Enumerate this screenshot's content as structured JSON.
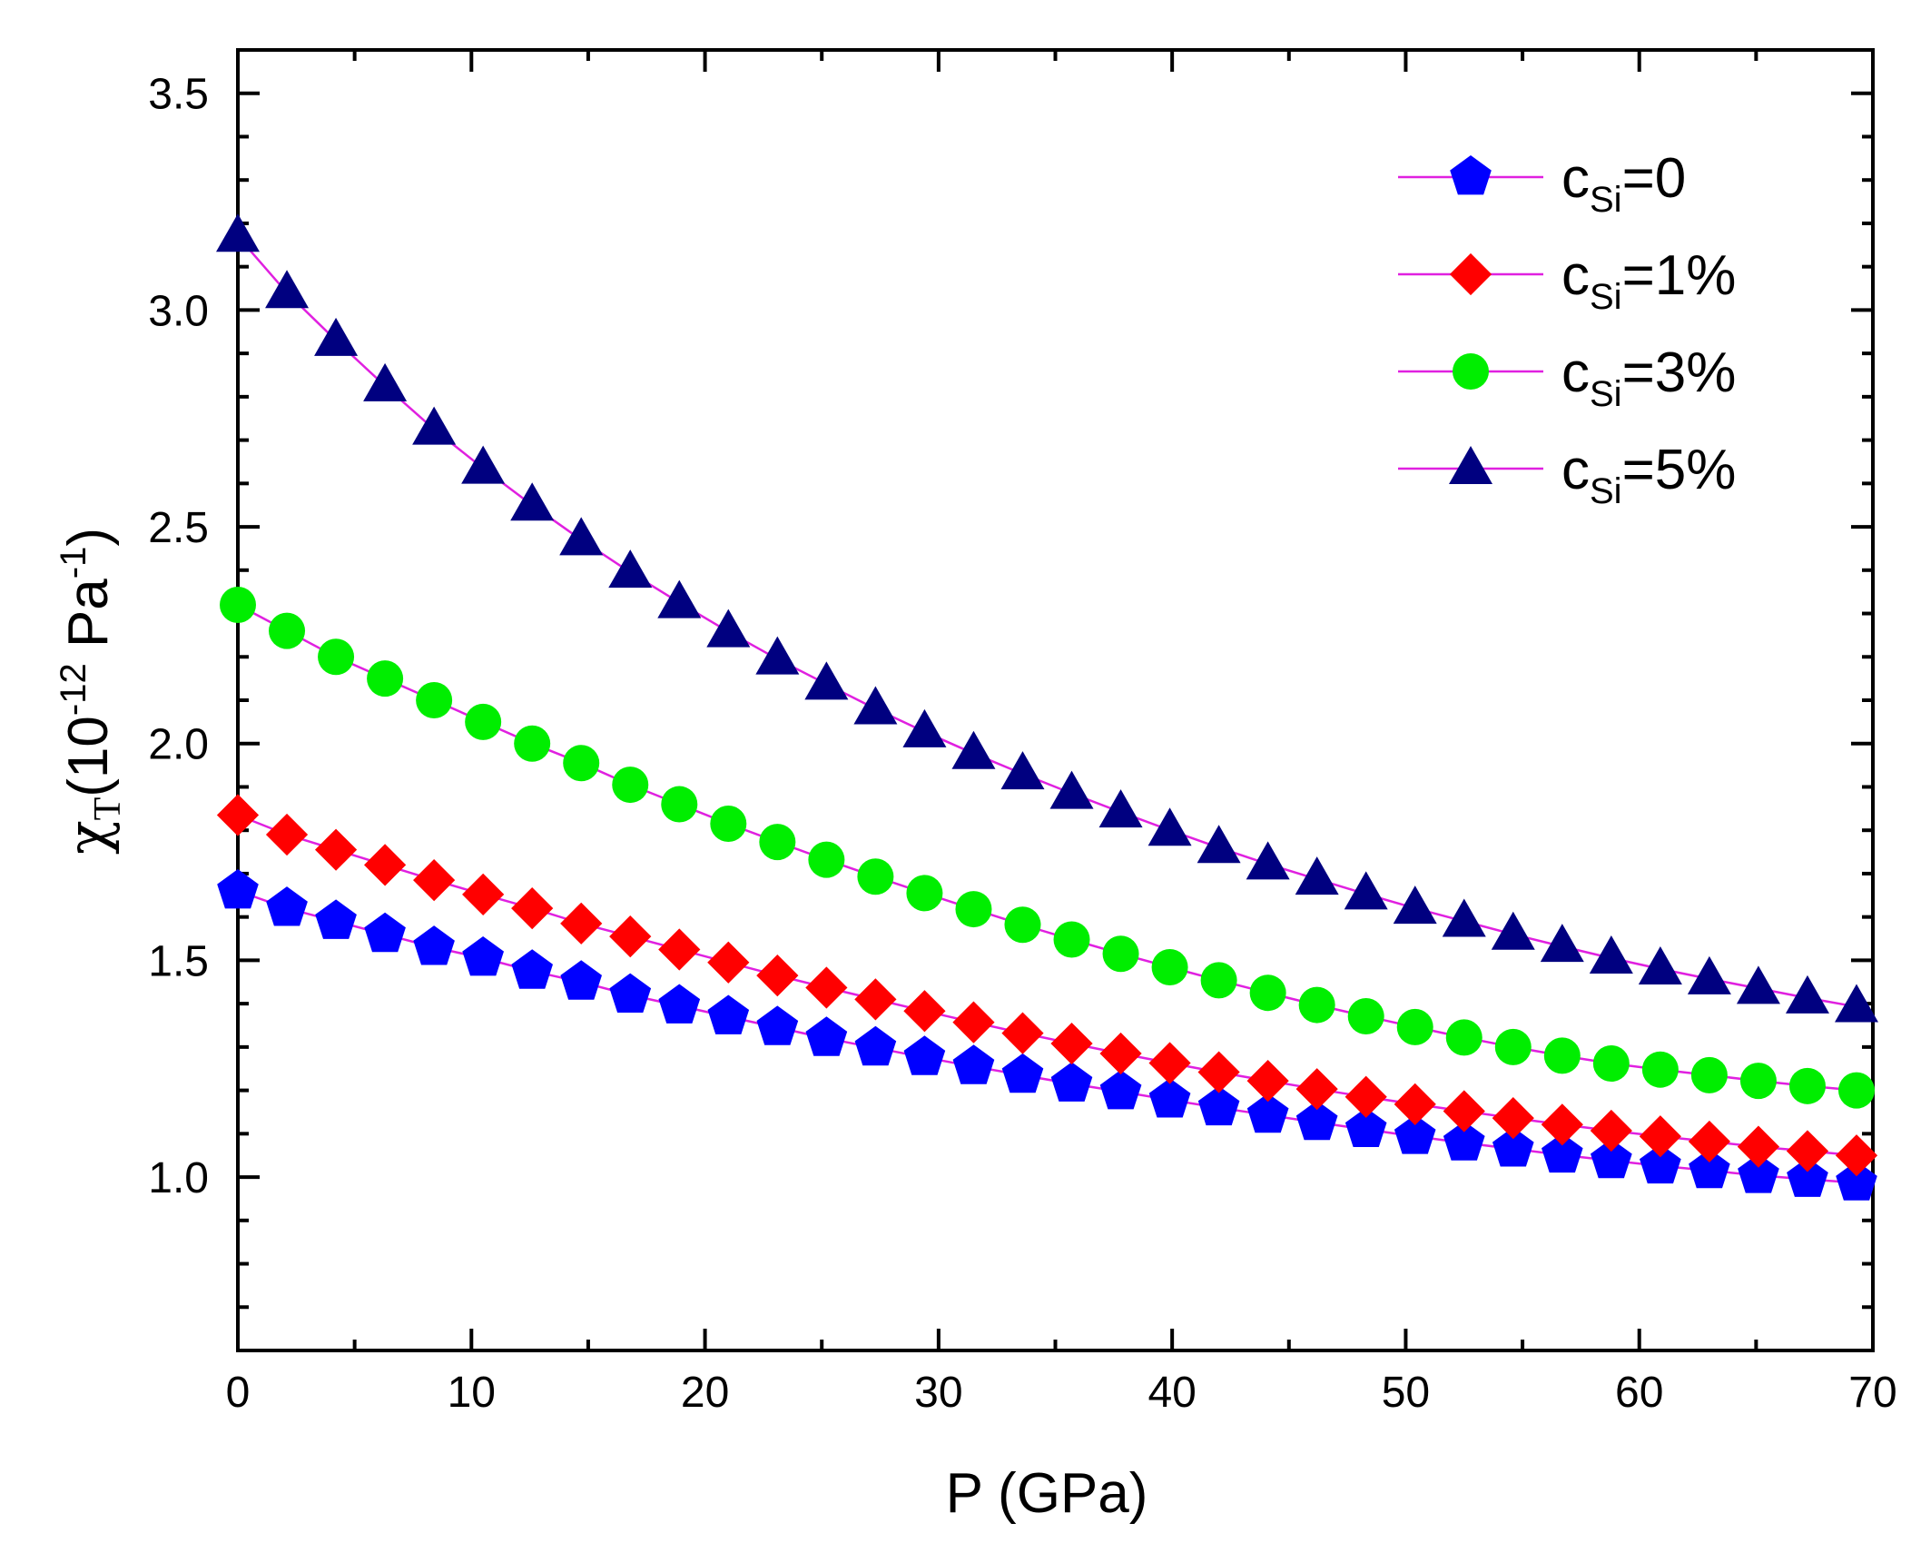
{
  "chart_data": {
    "type": "line",
    "title": "",
    "xlabel": "P (GPa)",
    "ylabel": {
      "symbol": "χ",
      "symbol_sub": "T",
      "paren_open": "(",
      "base": "10",
      "exponent": "-12",
      "unit": "Pa",
      "unit_exponent": "-1",
      "paren_close": ")"
    },
    "xlim": [
      0,
      70
    ],
    "ylim": [
      0.6,
      3.6
    ],
    "xticks": [
      0,
      10,
      20,
      30,
      40,
      50,
      60,
      70
    ],
    "xtick_labels": [
      "0",
      "10",
      "20",
      "30",
      "40",
      "50",
      "60",
      "70"
    ],
    "yticks": [
      1.0,
      1.5,
      2.0,
      2.5,
      3.0,
      3.5
    ],
    "ytick_labels": [
      "1.0",
      "1.5",
      "2.0",
      "2.5",
      "3.0",
      "3.5"
    ],
    "grid": false,
    "legend_position": "top-right",
    "line_color": "#e020e0",
    "x": [
      0,
      2.1,
      4.2,
      6.3,
      8.4,
      10.5,
      12.6,
      14.7,
      16.8,
      18.9,
      21.0,
      23.1,
      25.2,
      27.3,
      29.4,
      31.5,
      33.6,
      35.7,
      37.8,
      39.9,
      42.0,
      44.1,
      46.2,
      48.3,
      50.4,
      52.5,
      54.6,
      56.7,
      58.8,
      60.9,
      63.0,
      65.1,
      67.2,
      69.3
    ],
    "series": [
      {
        "name": "c_Si=0",
        "label_main": "c",
        "label_sub": "Si",
        "label_rest": "=0",
        "marker": "pentagon",
        "color": "#0000ff",
        "values": [
          1.66,
          1.62,
          1.59,
          1.56,
          1.53,
          1.505,
          1.475,
          1.45,
          1.42,
          1.395,
          1.37,
          1.345,
          1.32,
          1.298,
          1.276,
          1.255,
          1.235,
          1.215,
          1.197,
          1.178,
          1.16,
          1.143,
          1.126,
          1.11,
          1.094,
          1.079,
          1.065,
          1.051,
          1.038,
          1.026,
          1.015,
          1.004,
          0.995,
          0.987
        ]
      },
      {
        "name": "c_Si=1%",
        "label_main": "c",
        "label_sub": "Si",
        "label_rest": "=1%",
        "marker": "diamond",
        "color": "#ff0000",
        "values": [
          1.835,
          1.79,
          1.755,
          1.72,
          1.685,
          1.652,
          1.62,
          1.585,
          1.555,
          1.525,
          1.495,
          1.465,
          1.437,
          1.41,
          1.383,
          1.357,
          1.332,
          1.308,
          1.285,
          1.263,
          1.242,
          1.222,
          1.203,
          1.185,
          1.168,
          1.152,
          1.136,
          1.121,
          1.107,
          1.094,
          1.082,
          1.07,
          1.06,
          1.05
        ]
      },
      {
        "name": "c_Si=3%",
        "label_main": "c",
        "label_sub": "Si",
        "label_rest": "=3%",
        "marker": "circle",
        "color": "#00ee00",
        "values": [
          2.32,
          2.26,
          2.2,
          2.15,
          2.1,
          2.05,
          2.0,
          1.955,
          1.905,
          1.86,
          1.815,
          1.773,
          1.732,
          1.693,
          1.655,
          1.618,
          1.582,
          1.548,
          1.515,
          1.484,
          1.454,
          1.425,
          1.397,
          1.371,
          1.346,
          1.322,
          1.3,
          1.28,
          1.262,
          1.248,
          1.235,
          1.222,
          1.21,
          1.2
        ]
      },
      {
        "name": "c_Si=5%",
        "label_main": "c",
        "label_sub": "Si",
        "label_rest": "=5%",
        "marker": "triangle",
        "color": "#000080",
        "values": [
          3.17,
          3.04,
          2.93,
          2.825,
          2.725,
          2.635,
          2.55,
          2.47,
          2.395,
          2.325,
          2.258,
          2.195,
          2.137,
          2.08,
          2.027,
          1.977,
          1.93,
          1.885,
          1.842,
          1.8,
          1.76,
          1.722,
          1.687,
          1.653,
          1.62,
          1.59,
          1.56,
          1.532,
          1.505,
          1.48,
          1.457,
          1.435,
          1.413,
          1.393
        ]
      }
    ]
  }
}
